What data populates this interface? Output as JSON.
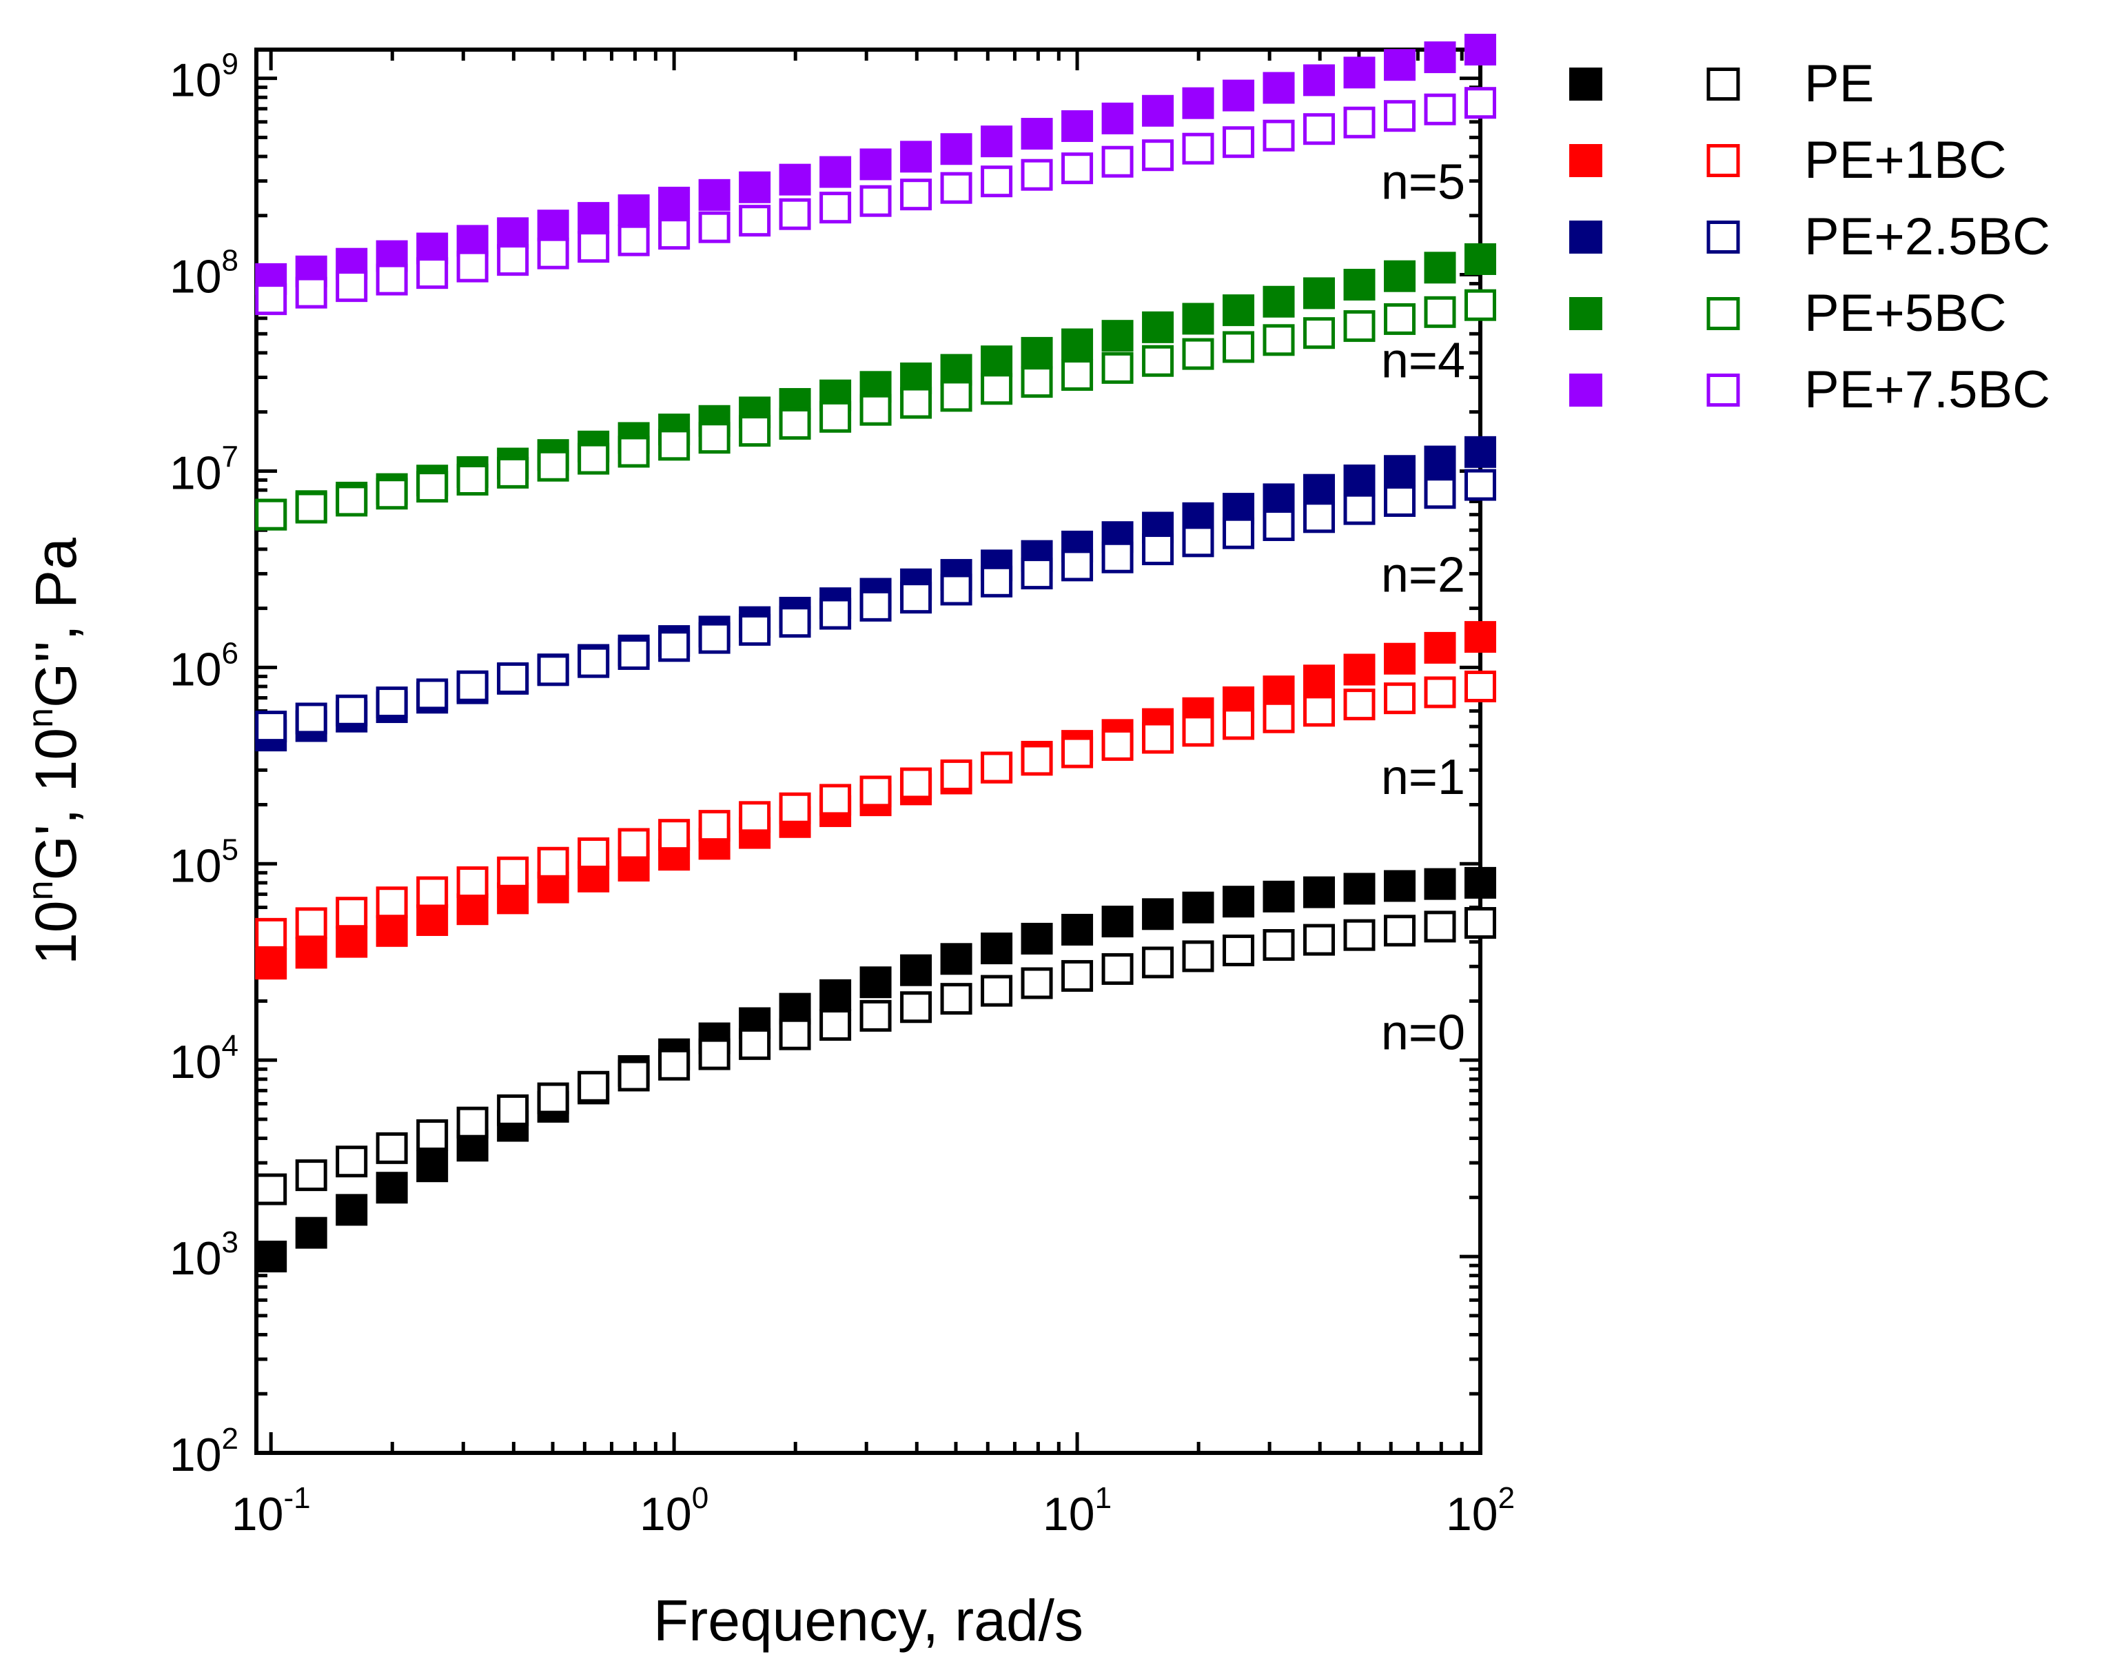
{
  "chart_data": {
    "type": "scatter",
    "title": "",
    "xlabel": "Frequency, rad/s",
    "ylabel": {
      "base": "10",
      "sup": "n",
      "g1": "G', ",
      "g2": "G'', Pa"
    },
    "xscale": "log",
    "yscale": "log",
    "xlim": [
      0.092,
      100
    ],
    "ylim": [
      100,
      1400000000
    ],
    "x_ticks": [
      {
        "base": "10",
        "exp": "-1",
        "value": 0.1
      },
      {
        "base": "10",
        "exp": "0",
        "value": 1
      },
      {
        "base": "10",
        "exp": "1",
        "value": 10
      },
      {
        "base": "10",
        "exp": "2",
        "value": 100
      }
    ],
    "y_ticks": [
      {
        "base": "10",
        "exp": "2",
        "value": 100
      },
      {
        "base": "10",
        "exp": "3",
        "value": 1000
      },
      {
        "base": "10",
        "exp": "4",
        "value": 10000
      },
      {
        "base": "10",
        "exp": "5",
        "value": 100000
      },
      {
        "base": "10",
        "exp": "6",
        "value": 1000000
      },
      {
        "base": "10",
        "exp": "7",
        "value": 10000000
      },
      {
        "base": "10",
        "exp": "8",
        "value": 100000000
      },
      {
        "base": "10",
        "exp": "9",
        "value": 1000000000
      }
    ],
    "legend_position": "right, outside plot",
    "annotations": [
      {
        "text": "n=5",
        "y_value": 300000000
      },
      {
        "text": "n=4",
        "y_value": 37000000
      },
      {
        "text": "n=2",
        "y_value": 3000000
      },
      {
        "text": "n=1",
        "y_value": 280000
      },
      {
        "text": "n=0",
        "y_value": 14000
      }
    ],
    "series": [
      {
        "name": "PE",
        "color": "#000000",
        "storage_modulus": {
          "start": 1000,
          "end": 80000,
          "shape": "quadratic",
          "curvature": 1.78
        },
        "loss_modulus": {
          "start": 2200,
          "end": 50000,
          "shape": "quadratic",
          "curvature": 0.82
        }
      },
      {
        "name": "PE+1BC",
        "color": "#ff0000",
        "storage_modulus": {
          "start": 31000,
          "end": 1430000,
          "shape": "linear",
          "curvature": 0
        },
        "loss_modulus": {
          "start": 44000,
          "end": 800000,
          "shape": "quadratic",
          "curvature": 0.38
        }
      },
      {
        "name": "PE+2.5BC",
        "color": "#00007f",
        "storage_modulus": {
          "start": 450000,
          "end": 12500000,
          "shape": "linear",
          "curvature": 0
        },
        "loss_modulus": {
          "start": 500000,
          "end": 8500000,
          "shape": "linear",
          "curvature": 0
        }
      },
      {
        "name": "PE+5BC",
        "color": "#007f00",
        "storage_modulus": {
          "start": 6000000,
          "end": 120000000,
          "shape": "linear",
          "curvature": 0
        },
        "loss_modulus": {
          "start": 6000000,
          "end": 70000000,
          "shape": "linear",
          "curvature": 0
        }
      },
      {
        "name": "PE+7.5BC",
        "color": "#9900ff",
        "storage_modulus": {
          "start": 95000000,
          "end": 1400000000,
          "shape": "linear",
          "curvature": 0
        },
        "loss_modulus": {
          "start": 75000000,
          "end": 750000000,
          "shape": "linear",
          "curvature": 0
        }
      }
    ],
    "frequencies": [
      0.1,
      0.1259,
      0.1585,
      0.1995,
      0.2512,
      0.3162,
      0.3981,
      0.5012,
      0.631,
      0.7943,
      1,
      1.259,
      1.585,
      1.995,
      2.512,
      3.162,
      3.981,
      5.012,
      6.31,
      7.943,
      10,
      12.59,
      15.85,
      19.95,
      25.12,
      31.62,
      39.81,
      50.12,
      63.1,
      79.43,
      100
    ]
  }
}
